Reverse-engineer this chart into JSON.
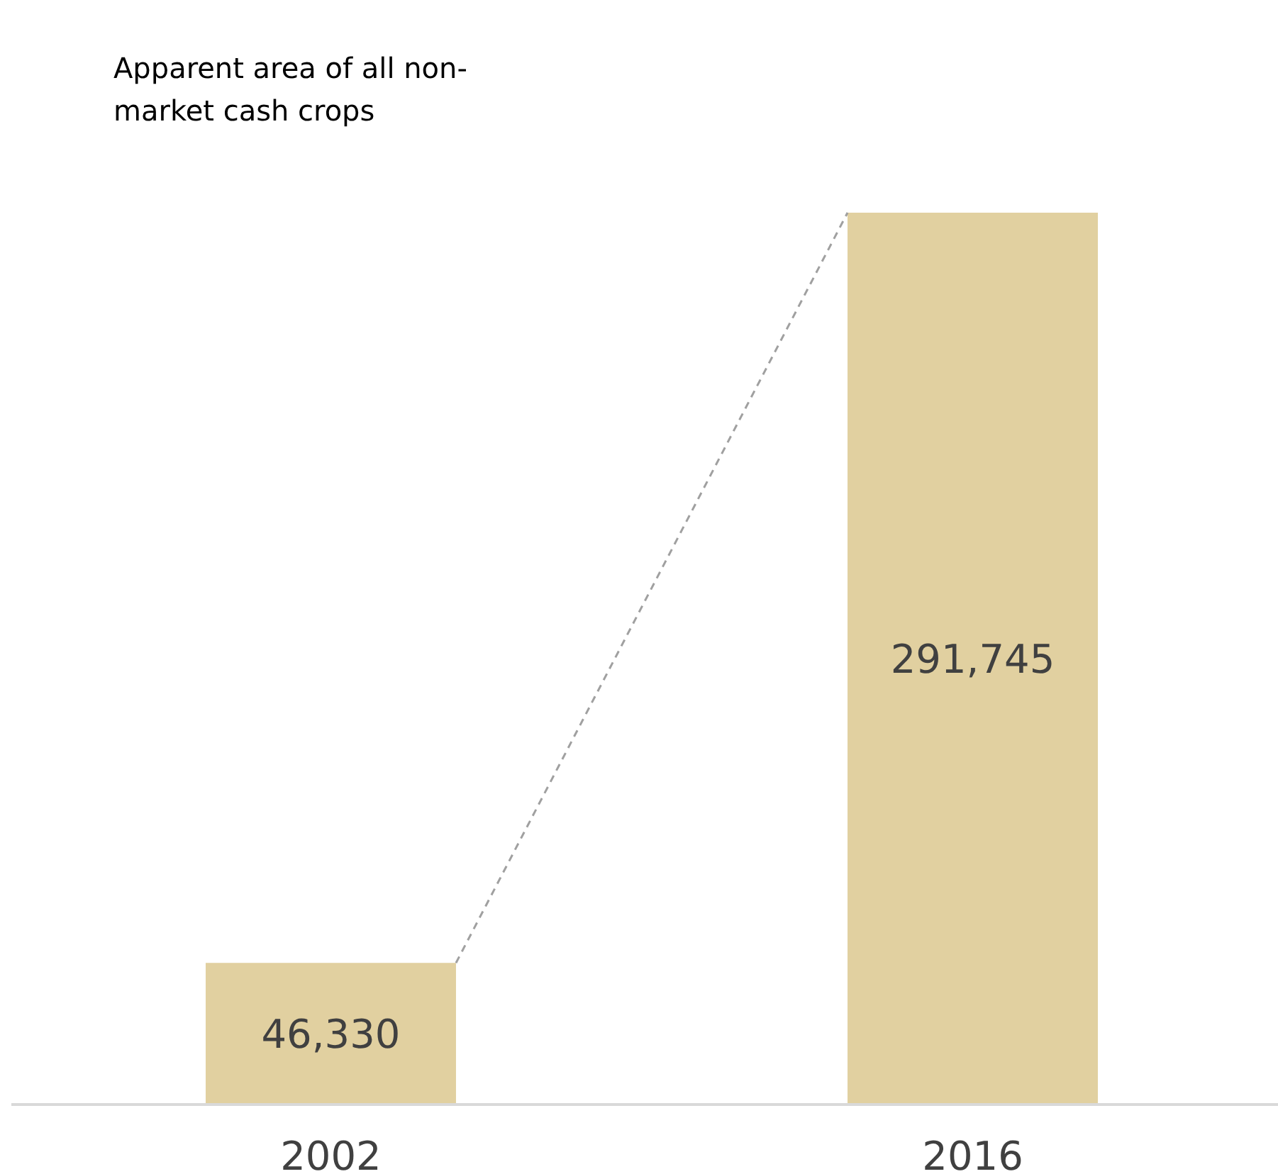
{
  "chart_data": {
    "type": "bar",
    "title": "Apparent area of all non-market cash crops",
    "categories": [
      "2002",
      "2016"
    ],
    "values": [
      46330,
      291745
    ],
    "value_labels": [
      "46,330",
      "291,745"
    ],
    "color": "#e1d0a0"
  }
}
